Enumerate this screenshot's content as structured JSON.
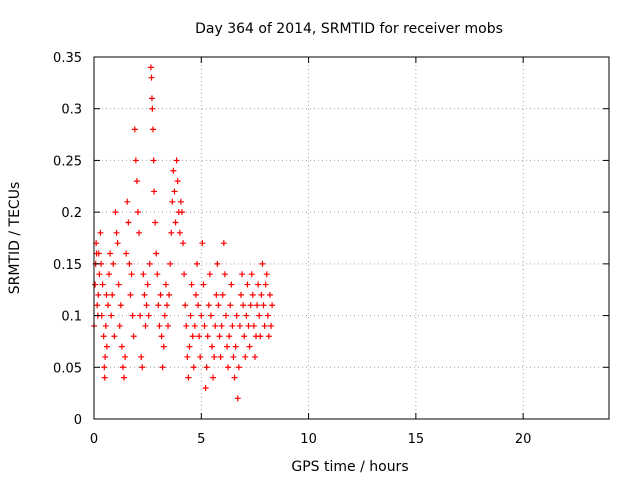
{
  "chart_data": {
    "type": "scatter",
    "title": "Day 364 of 2014, SRMTID for receiver mobs",
    "xlabel": "GPS time / hours",
    "ylabel": "SRMTID / TECUs",
    "xlim": [
      0,
      24
    ],
    "ylim": [
      0,
      0.35
    ],
    "xticks": [
      0,
      5,
      10,
      15,
      20
    ],
    "xtick_labels": [
      "0",
      "5",
      "10",
      "15",
      "20"
    ],
    "yticks": [
      0,
      0.05,
      0.1,
      0.15,
      0.2,
      0.25,
      0.3,
      0.35
    ],
    "ytick_labels": [
      "0",
      "0.05",
      "0.1",
      "0.15",
      "0.2",
      "0.25",
      "0.3",
      "0.35"
    ],
    "grid": true,
    "marker": "+",
    "color": "#ff0000",
    "series": [
      {
        "name": "SRMTID",
        "points": [
          [
            0.0,
            0.09
          ],
          [
            0.05,
            0.13
          ],
          [
            0.08,
            0.15
          ],
          [
            0.1,
            0.17
          ],
          [
            0.12,
            0.16
          ],
          [
            0.15,
            0.11
          ],
          [
            0.18,
            0.1
          ],
          [
            0.2,
            0.12
          ],
          [
            0.22,
            0.16
          ],
          [
            0.25,
            0.14
          ],
          [
            0.3,
            0.18
          ],
          [
            0.33,
            0.15
          ],
          [
            0.36,
            0.1
          ],
          [
            0.4,
            0.13
          ],
          [
            0.45,
            0.08
          ],
          [
            0.48,
            0.05
          ],
          [
            0.5,
            0.04
          ],
          [
            0.52,
            0.06
          ],
          [
            0.55,
            0.09
          ],
          [
            0.58,
            0.12
          ],
          [
            0.6,
            0.07
          ],
          [
            0.65,
            0.11
          ],
          [
            0.7,
            0.14
          ],
          [
            0.75,
            0.16
          ],
          [
            0.8,
            0.1
          ],
          [
            0.85,
            0.12
          ],
          [
            0.9,
            0.15
          ],
          [
            0.95,
            0.08
          ],
          [
            1.0,
            0.2
          ],
          [
            1.05,
            0.18
          ],
          [
            1.1,
            0.17
          ],
          [
            1.15,
            0.13
          ],
          [
            1.2,
            0.09
          ],
          [
            1.25,
            0.11
          ],
          [
            1.3,
            0.07
          ],
          [
            1.35,
            0.05
          ],
          [
            1.4,
            0.04
          ],
          [
            1.45,
            0.06
          ],
          [
            1.5,
            0.16
          ],
          [
            1.55,
            0.21
          ],
          [
            1.6,
            0.19
          ],
          [
            1.65,
            0.15
          ],
          [
            1.7,
            0.12
          ],
          [
            1.75,
            0.14
          ],
          [
            1.8,
            0.1
          ],
          [
            1.85,
            0.08
          ],
          [
            1.9,
            0.28
          ],
          [
            1.95,
            0.25
          ],
          [
            2.0,
            0.23
          ],
          [
            2.05,
            0.2
          ],
          [
            2.1,
            0.18
          ],
          [
            2.15,
            0.1
          ],
          [
            2.2,
            0.06
          ],
          [
            2.25,
            0.05
          ],
          [
            2.3,
            0.14
          ],
          [
            2.35,
            0.12
          ],
          [
            2.4,
            0.09
          ],
          [
            2.45,
            0.11
          ],
          [
            2.5,
            0.13
          ],
          [
            2.55,
            0.1
          ],
          [
            2.6,
            0.15
          ],
          [
            2.65,
            0.34
          ],
          [
            2.68,
            0.33
          ],
          [
            2.7,
            0.31
          ],
          [
            2.72,
            0.3
          ],
          [
            2.75,
            0.28
          ],
          [
            2.78,
            0.25
          ],
          [
            2.8,
            0.22
          ],
          [
            2.85,
            0.19
          ],
          [
            2.9,
            0.16
          ],
          [
            2.95,
            0.14
          ],
          [
            3.0,
            0.11
          ],
          [
            3.05,
            0.09
          ],
          [
            3.1,
            0.12
          ],
          [
            3.15,
            0.08
          ],
          [
            3.2,
            0.05
          ],
          [
            3.25,
            0.07
          ],
          [
            3.3,
            0.1
          ],
          [
            3.35,
            0.13
          ],
          [
            3.4,
            0.11
          ],
          [
            3.45,
            0.09
          ],
          [
            3.5,
            0.12
          ],
          [
            3.55,
            0.15
          ],
          [
            3.6,
            0.18
          ],
          [
            3.65,
            0.21
          ],
          [
            3.7,
            0.24
          ],
          [
            3.75,
            0.22
          ],
          [
            3.8,
            0.19
          ],
          [
            3.85,
            0.25
          ],
          [
            3.9,
            0.23
          ],
          [
            3.95,
            0.2
          ],
          [
            4.0,
            0.18
          ],
          [
            4.05,
            0.21
          ],
          [
            4.1,
            0.2
          ],
          [
            4.15,
            0.17
          ],
          [
            4.2,
            0.14
          ],
          [
            4.25,
            0.11
          ],
          [
            4.3,
            0.09
          ],
          [
            4.35,
            0.06
          ],
          [
            4.4,
            0.04
          ],
          [
            4.45,
            0.07
          ],
          [
            4.5,
            0.1
          ],
          [
            4.55,
            0.13
          ],
          [
            4.6,
            0.08
          ],
          [
            4.65,
            0.05
          ],
          [
            4.7,
            0.09
          ],
          [
            4.75,
            0.12
          ],
          [
            4.8,
            0.15
          ],
          [
            4.85,
            0.11
          ],
          [
            4.9,
            0.08
          ],
          [
            4.95,
            0.06
          ],
          [
            5.0,
            0.1
          ],
          [
            5.05,
            0.17
          ],
          [
            5.1,
            0.13
          ],
          [
            5.15,
            0.09
          ],
          [
            5.2,
            0.03
          ],
          [
            5.25,
            0.05
          ],
          [
            5.3,
            0.08
          ],
          [
            5.35,
            0.11
          ],
          [
            5.4,
            0.14
          ],
          [
            5.45,
            0.1
          ],
          [
            5.5,
            0.07
          ],
          [
            5.55,
            0.04
          ],
          [
            5.6,
            0.06
          ],
          [
            5.65,
            0.09
          ],
          [
            5.7,
            0.12
          ],
          [
            5.75,
            0.15
          ],
          [
            5.8,
            0.11
          ],
          [
            5.85,
            0.08
          ],
          [
            5.9,
            0.06
          ],
          [
            5.95,
            0.09
          ],
          [
            6.0,
            0.12
          ],
          [
            6.05,
            0.17
          ],
          [
            6.1,
            0.14
          ],
          [
            6.15,
            0.1
          ],
          [
            6.2,
            0.07
          ],
          [
            6.25,
            0.05
          ],
          [
            6.3,
            0.08
          ],
          [
            6.35,
            0.11
          ],
          [
            6.4,
            0.13
          ],
          [
            6.45,
            0.09
          ],
          [
            6.5,
            0.06
          ],
          [
            6.55,
            0.04
          ],
          [
            6.6,
            0.07
          ],
          [
            6.65,
            0.1
          ],
          [
            6.7,
            0.02
          ],
          [
            6.75,
            0.05
          ],
          [
            6.8,
            0.09
          ],
          [
            6.85,
            0.12
          ],
          [
            6.9,
            0.14
          ],
          [
            6.95,
            0.11
          ],
          [
            7.0,
            0.08
          ],
          [
            7.05,
            0.06
          ],
          [
            7.1,
            0.1
          ],
          [
            7.15,
            0.13
          ],
          [
            7.2,
            0.09
          ],
          [
            7.25,
            0.07
          ],
          [
            7.3,
            0.11
          ],
          [
            7.35,
            0.14
          ],
          [
            7.4,
            0.12
          ],
          [
            7.45,
            0.09
          ],
          [
            7.5,
            0.06
          ],
          [
            7.55,
            0.08
          ],
          [
            7.6,
            0.11
          ],
          [
            7.65,
            0.13
          ],
          [
            7.7,
            0.1
          ],
          [
            7.75,
            0.08
          ],
          [
            7.8,
            0.12
          ],
          [
            7.85,
            0.15
          ],
          [
            7.9,
            0.11
          ],
          [
            7.95,
            0.09
          ],
          [
            8.0,
            0.13
          ],
          [
            8.05,
            0.14
          ],
          [
            8.1,
            0.1
          ],
          [
            8.15,
            0.08
          ],
          [
            8.2,
            0.12
          ],
          [
            8.25,
            0.09
          ],
          [
            8.3,
            0.11
          ]
        ]
      }
    ]
  }
}
